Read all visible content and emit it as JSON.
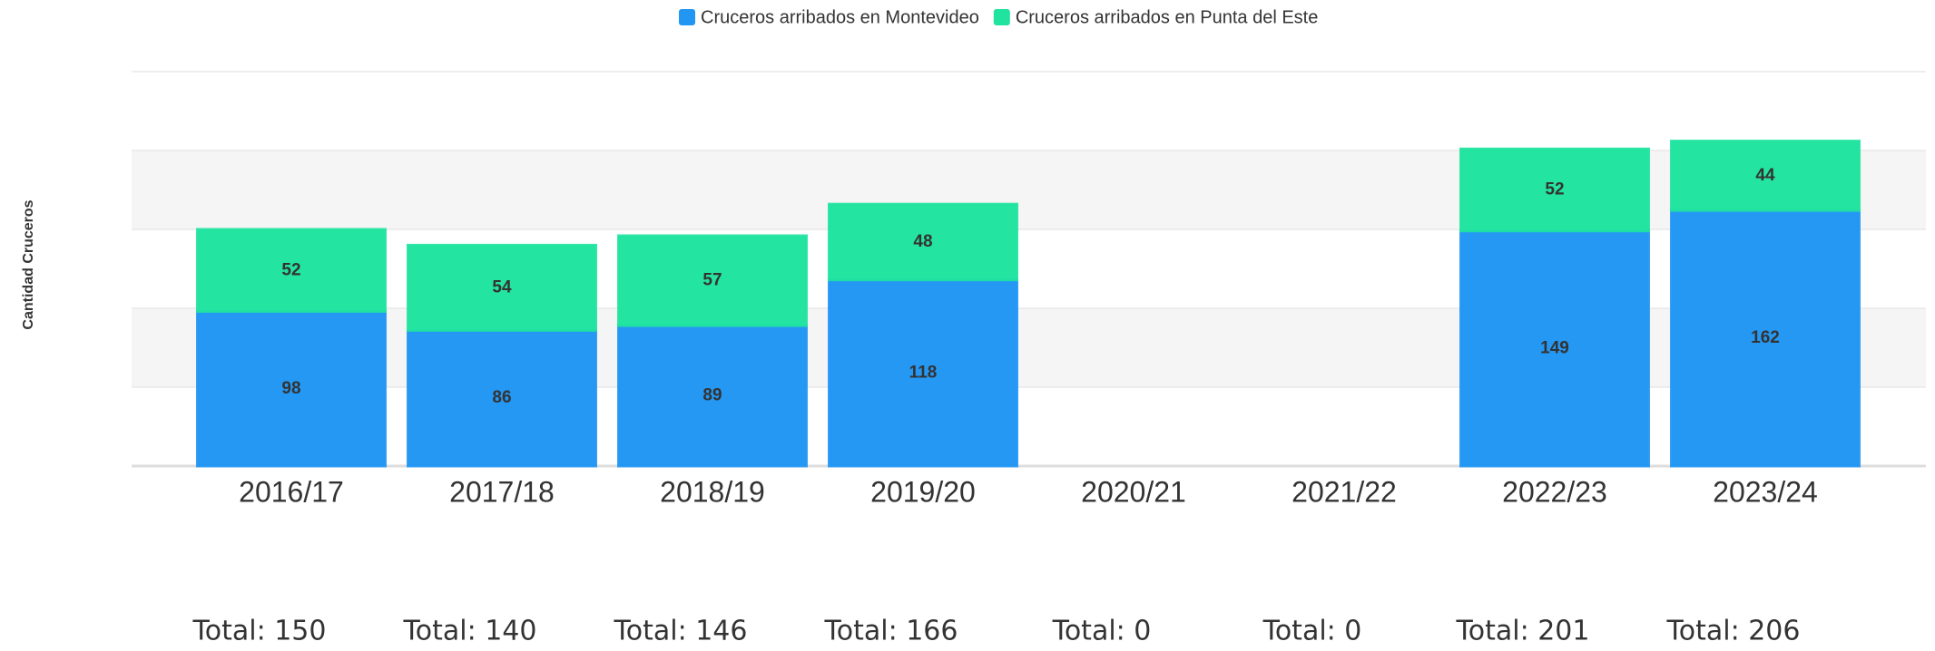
{
  "chart_data": {
    "type": "stacked_bar",
    "y_axis_label": "Cantidad Cruceros",
    "categories": [
      "2016/17",
      "2017/18",
      "2018/19",
      "2019/20",
      "2020/21",
      "2021/22",
      "2022/23",
      "2023/24"
    ],
    "series": [
      {
        "name": "Cruceros arribados en Montevideo",
        "color": "#2196f3",
        "values": [
          98,
          86,
          89,
          118,
          0,
          0,
          149,
          162
        ]
      },
      {
        "name": "Cruceros arribados en Punta del Este",
        "color": "#20e3a0",
        "values": [
          52,
          54,
          57,
          48,
          0,
          0,
          52,
          44
        ]
      }
    ],
    "totals": [
      "Total: 150",
      "Total: 140",
      "Total: 146",
      "Total: 166",
      "Total: 0",
      "Total: 0",
      "Total: 201",
      "Total: 206"
    ],
    "ylim": [
      0,
      250
    ],
    "yticks": [
      0,
      50,
      100,
      150,
      200,
      250
    ],
    "grid": true,
    "legend": "top"
  }
}
